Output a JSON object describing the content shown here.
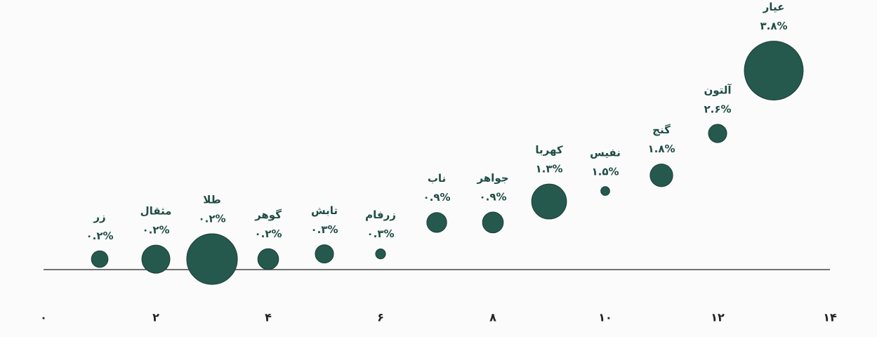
{
  "chart_data": {
    "type": "bubble",
    "x": [
      1,
      2,
      3,
      4,
      5,
      6,
      7,
      8,
      9,
      10,
      11,
      12,
      13
    ],
    "names": [
      "زر",
      "مثقال",
      "طلا",
      "گوهر",
      "تابش",
      "زرفام",
      "ناب",
      "جواهر",
      "کهربا",
      "نفیس",
      "گنج",
      "آلتون",
      "عیار"
    ],
    "values": [
      0.2,
      0.2,
      0.2,
      0.2,
      0.3,
      0.3,
      0.9,
      0.9,
      1.3,
      1.5,
      1.8,
      2.6,
      3.8
    ],
    "value_labels": [
      "۰.۲%",
      "۰.۲%",
      "۰.۲%",
      "۰.۲%",
      "۰.۳%",
      "۰.۳%",
      "۰.۹%",
      "۰.۹%",
      "۱.۳%",
      "۱.۵%",
      "۱.۸%",
      "۲.۶%",
      "۳.۸%"
    ],
    "sizes": [
      14,
      40,
      130,
      22,
      17,
      5,
      20,
      22,
      62,
      4,
      26,
      17,
      176
    ],
    "color": "#25594d",
    "xlim": [
      0,
      14
    ],
    "xticks": [
      {
        "value": 0,
        "label": "۰"
      },
      {
        "value": 2,
        "label": "۲"
      },
      {
        "value": 4,
        "label": "۴"
      },
      {
        "value": 6,
        "label": "۶"
      },
      {
        "value": 8,
        "label": "۸"
      },
      {
        "value": 10,
        "label": "۱۰"
      },
      {
        "value": 12,
        "label": "۱۲"
      },
      {
        "value": 14,
        "label": "۱۴"
      }
    ],
    "ylim": [
      0,
      5
    ]
  }
}
